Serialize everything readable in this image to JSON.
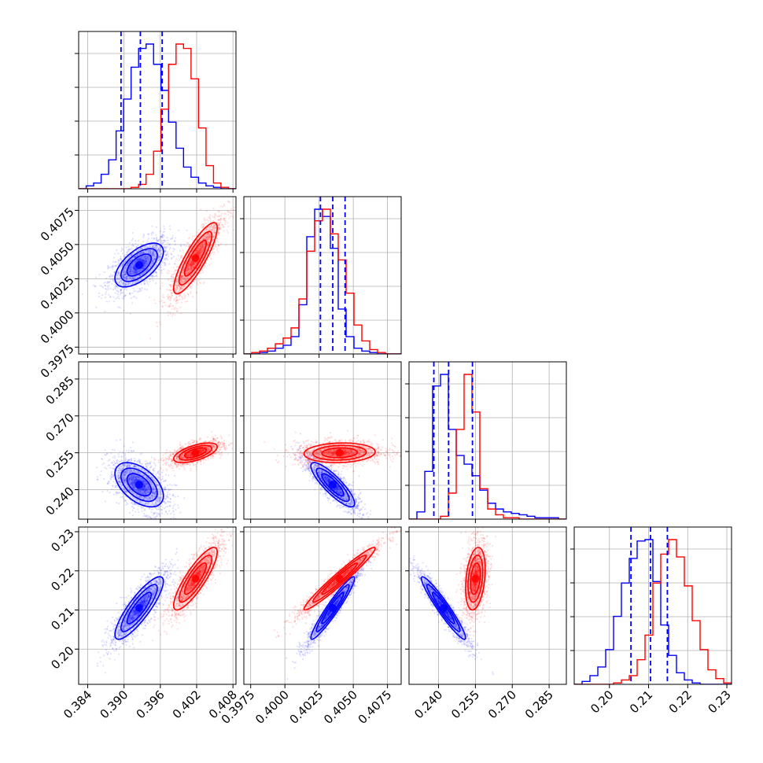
{
  "colors": {
    "series_a": "#0000ff",
    "series_b": "#ff0000",
    "grid": "#b0b0b0"
  },
  "chart_data": {
    "type": "corner",
    "description_kind": "corner plot (pairwise 2D posteriors with 1D marginal histograms)",
    "parameters": [
      {
        "range": [
          0.3825,
          0.4085
        ],
        "ticks": [
          0.384,
          0.39,
          0.396,
          0.402,
          0.408
        ],
        "tick_labels": [
          "0.384",
          "0.390",
          "0.396",
          "0.402",
          "0.408"
        ],
        "quantile_lines": [
          0.3895,
          0.3927,
          0.3963
        ]
      },
      {
        "range": [
          0.397,
          0.4085
        ],
        "ticks": [
          0.3975,
          0.4,
          0.4025,
          0.405,
          0.4075
        ],
        "tick_labels": [
          "0.3975",
          "0.4000",
          "0.4025",
          "0.4050",
          "0.4075"
        ],
        "quantile_lines": [
          0.4026,
          0.4035,
          0.4044
        ]
      },
      {
        "range": [
          0.228,
          0.292
        ],
        "ticks": [
          0.24,
          0.255,
          0.27,
          0.285
        ],
        "tick_labels": [
          "0.240",
          "0.255",
          "0.270",
          "0.285"
        ],
        "quantile_lines": [
          0.2381,
          0.2441,
          0.2538
        ]
      },
      {
        "range": [
          0.191,
          0.2312
        ],
        "ticks": [
          0.2,
          0.21,
          0.22,
          0.23
        ],
        "tick_labels": [
          "0.20",
          "0.21",
          "0.22",
          "0.23"
        ],
        "quantile_lines": [
          0.2055,
          0.2105,
          0.2148
        ]
      }
    ],
    "series": [
      {
        "color": "#0000ff",
        "mean": [
          0.3925,
          0.4035,
          0.242,
          0.2105
        ],
        "sd": [
          0.002,
          0.0008,
          0.0045,
          0.004
        ],
        "corr": [
          [
            1.0,
            0.6,
            -0.5,
            0.85
          ],
          [
            0.6,
            1.0,
            -0.85,
            0.95
          ],
          [
            -0.5,
            -0.85,
            1.0,
            -0.95
          ],
          [
            0.85,
            0.95,
            -0.95,
            1.0
          ]
        ],
        "hist_heights": [
          [
            0,
            0.02,
            0.04,
            0.1,
            0.2,
            0.4,
            0.62,
            0.84,
            0.97,
            1.0,
            0.86,
            0.68,
            0.46,
            0.28,
            0.15,
            0.08,
            0.04,
            0.02,
            0.01,
            0,
            0
          ],
          [
            0,
            0,
            0.01,
            0.02,
            0.04,
            0.06,
            0.12,
            0.34,
            0.81,
            1.0,
            0.95,
            0.73,
            0.31,
            0.12,
            0.04,
            0.02,
            0.01,
            0,
            0,
            0
          ],
          [
            0,
            0.05,
            0.33,
            0.92,
            1.0,
            0.62,
            0.44,
            0.38,
            0.3,
            0.2,
            0.11,
            0.07,
            0.05,
            0.04,
            0.03,
            0.02,
            0.01,
            0.01,
            0.01,
            0
          ],
          [
            0,
            0.02,
            0.06,
            0.12,
            0.24,
            0.47,
            0.7,
            0.87,
            0.99,
            1.0,
            0.71,
            0.41,
            0.2,
            0.08,
            0.03,
            0.01,
            0,
            0,
            0,
            0
          ]
        ]
      },
      {
        "color": "#ff0000",
        "mean": [
          0.4018,
          0.404,
          0.255,
          0.218
        ],
        "sd": [
          0.0018,
          0.0013,
          0.002,
          0.004
        ],
        "corr": [
          [
            1.0,
            0.85,
            0.6,
            0.85
          ],
          [
            0.85,
            1.0,
            0.1,
            0.97
          ],
          [
            0.6,
            0.1,
            1.0,
            0.3
          ],
          [
            0.85,
            0.97,
            0.3,
            1.0
          ]
        ],
        "hist_heights": [
          [
            0,
            0,
            0,
            0,
            0,
            0,
            0,
            0.01,
            0.03,
            0.1,
            0.26,
            0.55,
            0.86,
            1.0,
            0.97,
            0.76,
            0.42,
            0.16,
            0.04,
            0.01,
            0
          ],
          [
            0,
            0.01,
            0.02,
            0.04,
            0.07,
            0.11,
            0.18,
            0.38,
            0.71,
            0.92,
            1.0,
            0.83,
            0.65,
            0.42,
            0.2,
            0.09,
            0.03,
            0.01,
            0,
            0
          ],
          [
            0,
            0,
            0,
            0,
            0.02,
            0.18,
            0.62,
            1.0,
            0.74,
            0.21,
            0.07,
            0.03,
            0.01,
            0.01,
            0,
            0,
            0,
            0,
            0,
            0
          ],
          [
            0,
            0,
            0,
            0,
            0,
            0.01,
            0.03,
            0.06,
            0.17,
            0.34,
            0.7,
            0.9,
            1.0,
            0.88,
            0.68,
            0.44,
            0.24,
            0.1,
            0.04,
            0.01
          ]
        ]
      }
    ],
    "grid": true
  }
}
